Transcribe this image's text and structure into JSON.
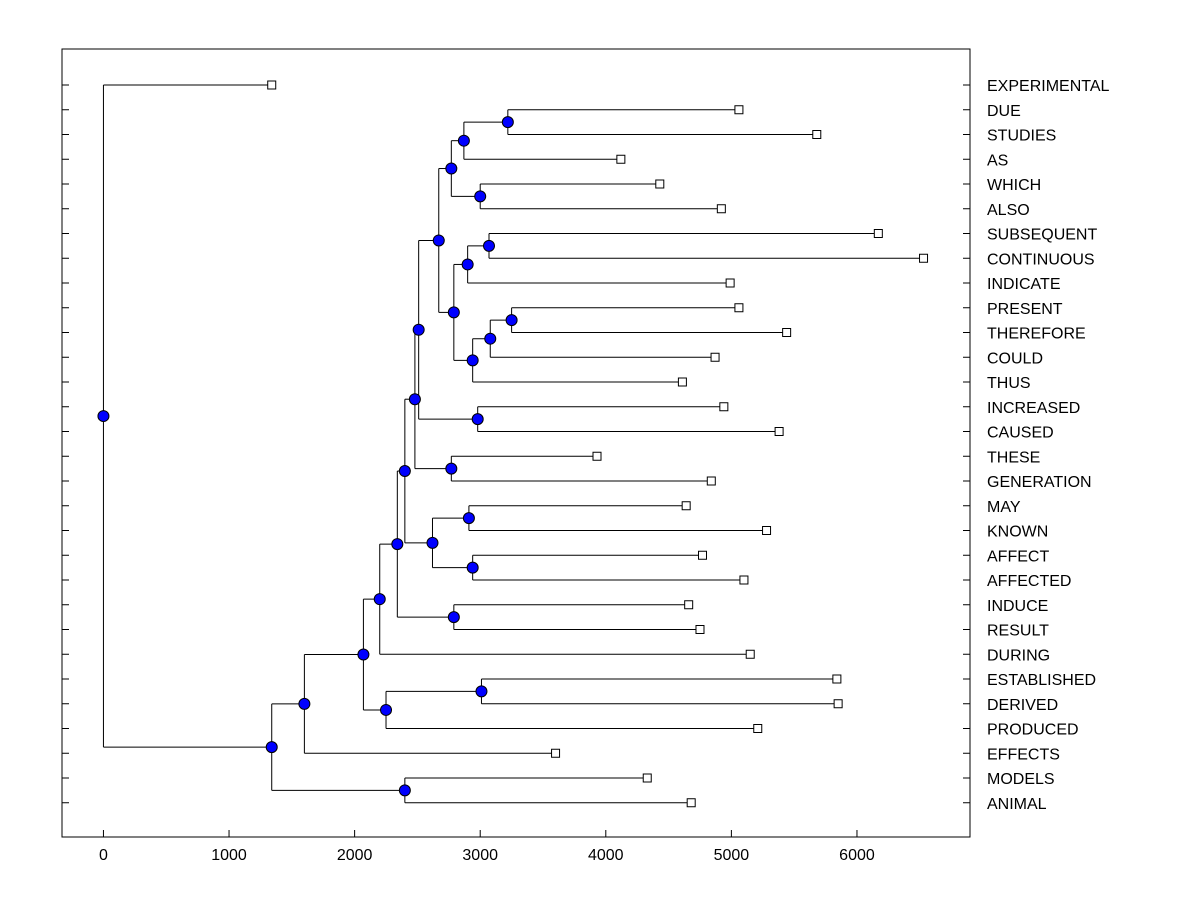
{
  "chart_data": {
    "type": "dendrogram",
    "xlim": [
      -330,
      6900
    ],
    "x_ticks": [
      0,
      1000,
      2000,
      3000,
      4000,
      5000,
      6000
    ],
    "grid": false,
    "node_color": "#0000ff",
    "leaves": [
      {
        "label": "EXPERIMENTAL",
        "x": 1340
      },
      {
        "label": "DUE",
        "x": 5060
      },
      {
        "label": "STUDIES",
        "x": 5680
      },
      {
        "label": "AS",
        "x": 4120
      },
      {
        "label": "WHICH",
        "x": 4430
      },
      {
        "label": "ALSO",
        "x": 4920
      },
      {
        "label": "SUBSEQUENT",
        "x": 6170
      },
      {
        "label": "CONTINUOUS",
        "x": 6530
      },
      {
        "label": "INDICATE",
        "x": 4990
      },
      {
        "label": "PRESENT",
        "x": 5060
      },
      {
        "label": "THEREFORE",
        "x": 5440
      },
      {
        "label": "COULD",
        "x": 4870
      },
      {
        "label": "THUS",
        "x": 4610
      },
      {
        "label": "INCREASED",
        "x": 4940
      },
      {
        "label": "CAUSED",
        "x": 5380
      },
      {
        "label": "THESE",
        "x": 3930
      },
      {
        "label": "GENERATION",
        "x": 4840
      },
      {
        "label": "MAY",
        "x": 4640
      },
      {
        "label": "KNOWN",
        "x": 5280
      },
      {
        "label": "AFFECT",
        "x": 4770
      },
      {
        "label": "AFFECTED",
        "x": 5100
      },
      {
        "label": "INDUCE",
        "x": 4660
      },
      {
        "label": "RESULT",
        "x": 4750
      },
      {
        "label": "DURING",
        "x": 5150
      },
      {
        "label": "ESTABLISHED",
        "x": 5840
      },
      {
        "label": "DERIVED",
        "x": 5850
      },
      {
        "label": "PRODUCED",
        "x": 5210
      },
      {
        "label": "EFFECTS",
        "x": 3600
      },
      {
        "label": "MODELS",
        "x": 4330
      },
      {
        "label": "ANIMAL",
        "x": 4680
      }
    ],
    "merges": [
      {
        "id": "n1",
        "x": 3220,
        "children": [
          "DUE",
          "STUDIES"
        ]
      },
      {
        "id": "n2",
        "x": 2870,
        "children": [
          "n1",
          "AS"
        ]
      },
      {
        "id": "n3",
        "x": 3000,
        "children": [
          "WHICH",
          "ALSO"
        ]
      },
      {
        "id": "n4",
        "x": 2770,
        "children": [
          "n2",
          "n3"
        ]
      },
      {
        "id": "n5",
        "x": 3070,
        "children": [
          "SUBSEQUENT",
          "CONTINUOUS"
        ]
      },
      {
        "id": "n6",
        "x": 2900,
        "children": [
          "n5",
          "INDICATE"
        ]
      },
      {
        "id": "n7",
        "x": 3250,
        "children": [
          "PRESENT",
          "THEREFORE"
        ]
      },
      {
        "id": "n8",
        "x": 3080,
        "children": [
          "n7",
          "COULD"
        ]
      },
      {
        "id": "n9",
        "x": 2940,
        "children": [
          "n8",
          "THUS"
        ]
      },
      {
        "id": "n10",
        "x": 2790,
        "children": [
          "n6",
          "n9"
        ]
      },
      {
        "id": "n11",
        "x": 2670,
        "children": [
          "n4",
          "n10"
        ]
      },
      {
        "id": "n12",
        "x": 2980,
        "children": [
          "INCREASED",
          "CAUSED"
        ]
      },
      {
        "id": "n13",
        "x": 2510,
        "children": [
          "n11",
          "n12"
        ]
      },
      {
        "id": "n14",
        "x": 2770,
        "children": [
          "THESE",
          "GENERATION"
        ]
      },
      {
        "id": "n15",
        "x": 2480,
        "children": [
          "n13",
          "n14"
        ]
      },
      {
        "id": "n16",
        "x": 2910,
        "children": [
          "MAY",
          "KNOWN"
        ]
      },
      {
        "id": "n17",
        "x": 2940,
        "children": [
          "AFFECT",
          "AFFECTED"
        ]
      },
      {
        "id": "n18",
        "x": 2620,
        "children": [
          "n16",
          "n17"
        ]
      },
      {
        "id": "n19",
        "x": 2400,
        "children": [
          "n15",
          "n18"
        ]
      },
      {
        "id": "n20",
        "x": 2790,
        "children": [
          "INDUCE",
          "RESULT"
        ]
      },
      {
        "id": "n21",
        "x": 2340,
        "children": [
          "n19",
          "n20"
        ]
      },
      {
        "id": "n22",
        "x": 2200,
        "children": [
          "n21",
          "DURING"
        ]
      },
      {
        "id": "n23",
        "x": 3010,
        "children": [
          "ESTABLISHED",
          "DERIVED"
        ]
      },
      {
        "id": "n24",
        "x": 2250,
        "children": [
          "n23",
          "PRODUCED"
        ]
      },
      {
        "id": "n25",
        "x": 2070,
        "children": [
          "n22",
          "n24"
        ]
      },
      {
        "id": "n26",
        "x": 1600,
        "children": [
          "n25",
          "EFFECTS"
        ]
      },
      {
        "id": "n27",
        "x": 2400,
        "children": [
          "MODELS",
          "ANIMAL"
        ]
      },
      {
        "id": "n28",
        "x": 1340,
        "children": [
          "n26",
          "n27"
        ]
      },
      {
        "id": "n29",
        "x": 0,
        "children": [
          "EXPERIMENTAL",
          "n28"
        ]
      }
    ]
  }
}
